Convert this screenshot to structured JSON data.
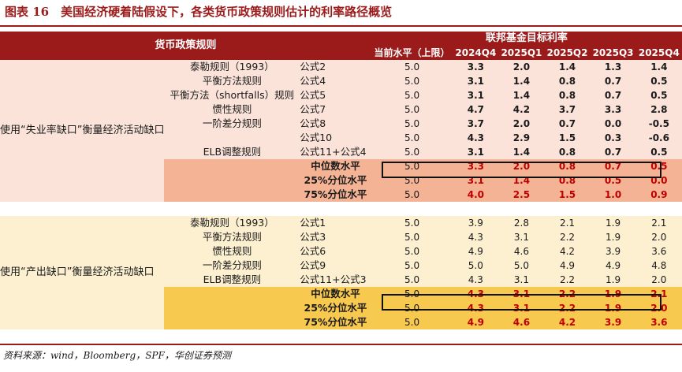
{
  "title": "图表 16　美国经济硬着陆假设下，各类货币政策规则估计的利率路径概览",
  "header": {
    "left": "货币政策规则",
    "top": "联邦基金目标利率",
    "sub": [
      "当前水平（上限）",
      "2024Q4",
      "2025Q1",
      "2025Q2",
      "2025Q3",
      "2025Q4"
    ]
  },
  "groups": [
    {
      "label": "使用“失业率缺口”衡量经济活动缺口",
      "rows": [
        {
          "rule": "泰勒规则（1993）",
          "formula": "公式2",
          "cur": "5.0",
          "v": [
            "3.3",
            "2.0",
            "1.4",
            "1.3",
            "1.4"
          ]
        },
        {
          "rule": "平衡方法规则",
          "formula": "公式4",
          "cur": "5.0",
          "v": [
            "3.1",
            "1.4",
            "0.8",
            "0.7",
            "0.5"
          ]
        },
        {
          "rule": "平衡方法（shortfalls）规则",
          "formula": "公式5",
          "cur": "5.0",
          "v": [
            "3.1",
            "1.4",
            "0.8",
            "0.7",
            "0.5"
          ]
        },
        {
          "rule": "惯性规则",
          "formula": "公式7",
          "cur": "5.0",
          "v": [
            "4.7",
            "4.2",
            "3.7",
            "3.3",
            "2.8"
          ]
        },
        {
          "rule": "一阶差分规则",
          "formula": "公式8",
          "cur": "5.0",
          "v": [
            "3.7",
            "2.0",
            "0.7",
            "0.0",
            "-0.5"
          ]
        },
        {
          "rule": "",
          "formula": "公式10",
          "cur": "5.0",
          "v": [
            "4.3",
            "2.9",
            "1.5",
            "0.3",
            "-0.6"
          ]
        },
        {
          "rule": "ELB调整规则",
          "formula": "公式11+公式4",
          "cur": "5.0",
          "v": [
            "3.1",
            "1.4",
            "0.8",
            "0.7",
            "0.5"
          ]
        }
      ],
      "summary": [
        {
          "label": "中位数水平",
          "cur": "5.0",
          "v": [
            "3.3",
            "2.0",
            "0.8",
            "0.7",
            "0.5"
          ]
        },
        {
          "label": "25%分位水平",
          "cur": "5.0",
          "v": [
            "3.1",
            "1.4",
            "0.8",
            "0.5",
            "0.0"
          ]
        },
        {
          "label": "75%分位水平",
          "cur": "5.0",
          "v": [
            "4.0",
            "2.5",
            "1.5",
            "1.0",
            "0.9"
          ]
        }
      ]
    },
    {
      "label": "使用“产出缺口”衡量经济活动缺口",
      "rows": [
        {
          "rule": "泰勒规则（1993）",
          "formula": "公式1",
          "cur": "5.0",
          "v": [
            "3.9",
            "2.8",
            "2.1",
            "1.9",
            "2.1"
          ]
        },
        {
          "rule": "平衡方法规则",
          "formula": "公式3",
          "cur": "5.0",
          "v": [
            "4.3",
            "3.1",
            "2.2",
            "1.9",
            "2.0"
          ]
        },
        {
          "rule": "惯性规则",
          "formula": "公式6",
          "cur": "5.0",
          "v": [
            "4.9",
            "4.6",
            "4.2",
            "3.9",
            "3.6"
          ]
        },
        {
          "rule": "一阶差分规则",
          "formula": "公式9",
          "cur": "5.0",
          "v": [
            "5.0",
            "5.0",
            "4.9",
            "4.9",
            "4.8"
          ]
        },
        {
          "rule": "ELB调整规则",
          "formula": "公式11+公式3",
          "cur": "5.0",
          "v": [
            "4.3",
            "3.1",
            "2.2",
            "1.9",
            "2.0"
          ]
        }
      ],
      "summary": [
        {
          "label": "中位数水平",
          "cur": "5.0",
          "v": [
            "4.3",
            "3.1",
            "2.2",
            "1.9",
            "2.1"
          ]
        },
        {
          "label": "25%分位水平",
          "cur": "5.0",
          "v": [
            "4.3",
            "3.1",
            "2.2",
            "1.9",
            "2.0"
          ]
        },
        {
          "label": "75%分位水平",
          "cur": "5.0",
          "v": [
            "4.9",
            "4.6",
            "4.2",
            "3.9",
            "3.6"
          ]
        }
      ]
    }
  ],
  "source": "资料来源：wind，Bloomberg，SPF，华创证券预测"
}
